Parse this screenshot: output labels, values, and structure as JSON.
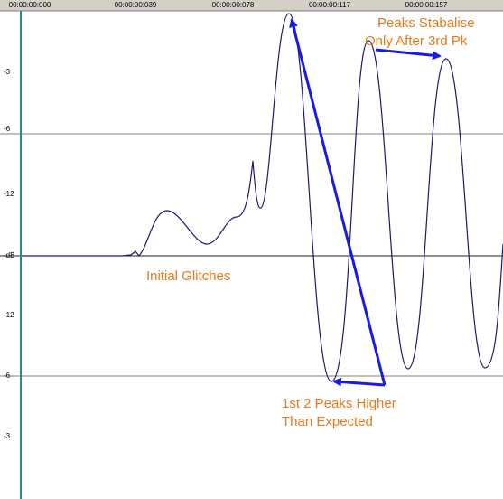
{
  "ruler": {
    "labels": [
      "00:00:00:000",
      "00:00:00:039",
      "00:00:00:078",
      "00:00:00:117",
      "00:00:00:157"
    ]
  },
  "level_labels": [
    "-3",
    "-6",
    "-12",
    "-dB",
    "-12",
    "-6",
    "-3"
  ],
  "annotations": {
    "glitches": "Initial Glitches",
    "peaks_higher": [
      "1st 2 Peaks Higher",
      "Than Expected"
    ],
    "stabilise": [
      "Peaks Stabalise",
      "Only After 3rd Pk"
    ]
  }
}
